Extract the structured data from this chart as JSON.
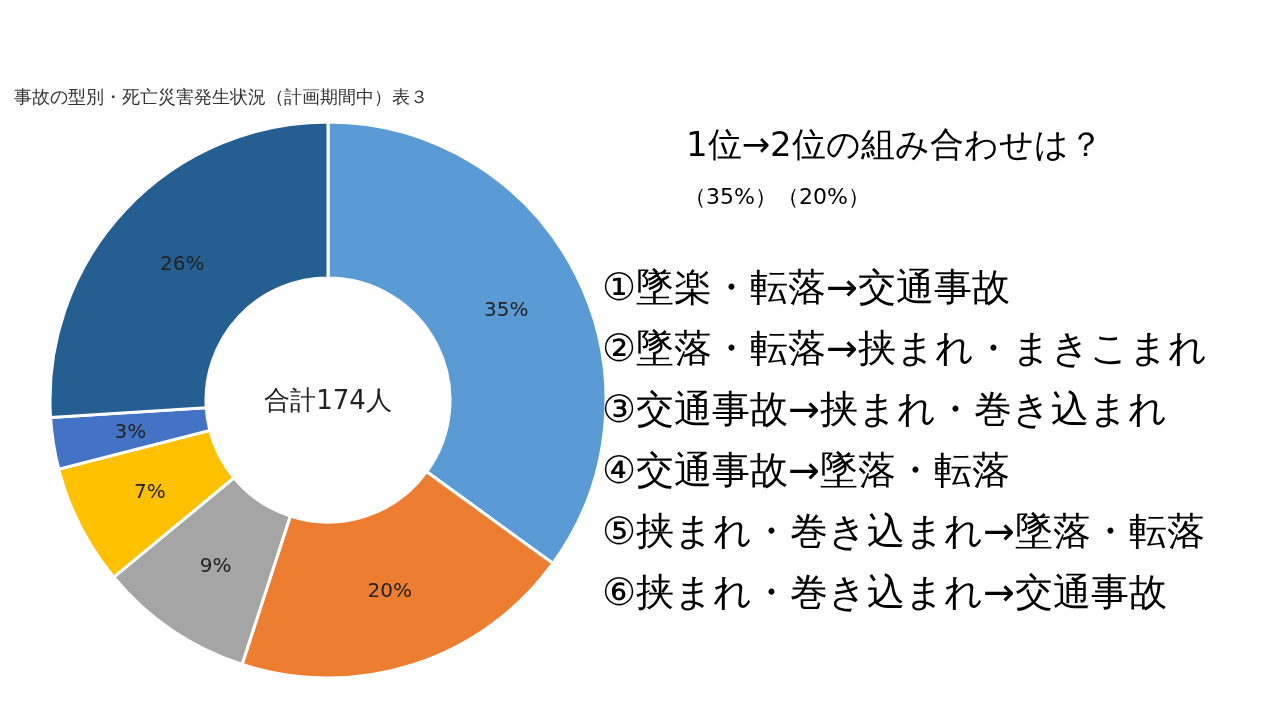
{
  "chart_data": {
    "type": "donut",
    "title": "事故の型別・死亡災害発生状況（計画期間中）表３",
    "categories": [
      null,
      null,
      null,
      null,
      null,
      null
    ],
    "values": [
      35,
      20,
      9,
      7,
      3,
      26
    ],
    "value_labels": [
      "35%",
      "20%",
      "9%",
      "7%",
      "3%",
      "26%"
    ],
    "colors": [
      "#5b9bd5",
      "#ed7d31",
      "#a5a5a5",
      "#ffc000",
      "#4472c4",
      "#255e91"
    ],
    "annotations": [
      "合計174人",
      "1位→2位の組み合わせは？",
      "（35%）（20%）",
      "①墜楽・転落→交通事故",
      "②墜落・転落→挟まれ・まきこまれ",
      "③交通事故→挟まれ・巻き込まれ",
      "④交通事故→墜落・転落",
      "⑤挟まれ・巻き込まれ→墜落・転落",
      "⑥挟まれ・巻き込まれ→交通事故"
    ]
  }
}
